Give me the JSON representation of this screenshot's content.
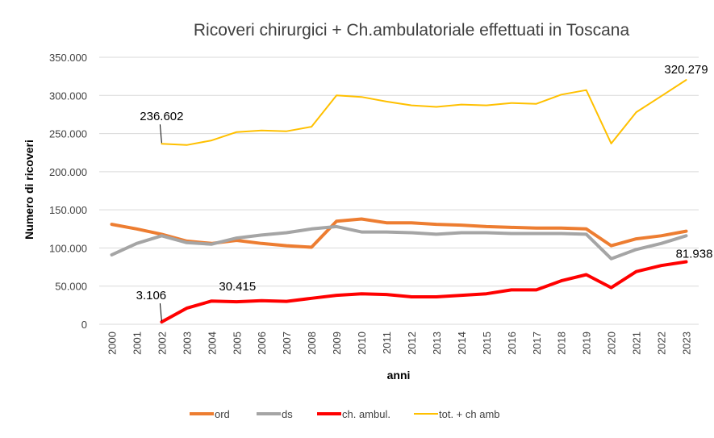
{
  "chart_data": {
    "type": "line",
    "title": "Ricoveri chirurgici + Ch.ambulatoriale effettuati in Toscana",
    "xlabel": "anni",
    "ylabel": "Numero di ricoveri",
    "ylim": [
      0,
      350000
    ],
    "yticks": [
      0,
      50000,
      100000,
      150000,
      200000,
      250000,
      300000,
      350000
    ],
    "ytick_labels": [
      "0",
      "50.000",
      "100.000",
      "150.000",
      "200.000",
      "250.000",
      "300.000",
      "350.000"
    ],
    "grid": true,
    "legend_position": "bottom",
    "categories": [
      "2000",
      "2001",
      "2002",
      "2003",
      "2004",
      "2005",
      "2006",
      "2007",
      "2008",
      "2009",
      "2010",
      "2011",
      "2012",
      "2013",
      "2014",
      "2015",
      "2016",
      "2017",
      "2018",
      "2019",
      "2020",
      "2021",
      "2022",
      "2023"
    ],
    "series": [
      {
        "name": "ord",
        "color": "#ED7D31",
        "values": [
          131000,
          125000,
          118000,
          109000,
          106000,
          110000,
          106000,
          103000,
          101000,
          135000,
          138000,
          133000,
          133000,
          131000,
          130000,
          128000,
          127000,
          126000,
          126000,
          125000,
          103000,
          112000,
          116000,
          122000
        ]
      },
      {
        "name": "ds",
        "color": "#A5A5A5",
        "values": [
          91000,
          106000,
          116000,
          107000,
          105000,
          113000,
          117000,
          120000,
          125000,
          128000,
          121000,
          121000,
          120000,
          118000,
          120000,
          120000,
          119000,
          119000,
          119000,
          118000,
          86000,
          98000,
          106000,
          116000
        ]
      },
      {
        "name": "ch. ambul.",
        "color": "#FF0000",
        "values": [
          null,
          null,
          3106,
          21000,
          30415,
          29500,
          31000,
          30000,
          34000,
          38000,
          40000,
          39000,
          36000,
          36000,
          38000,
          40000,
          45000,
          45000,
          57000,
          65000,
          48000,
          69000,
          77000,
          81938
        ]
      },
      {
        "name": "tot. + ch amb",
        "color": "#FFC000",
        "values": [
          null,
          null,
          236602,
          235000,
          241000,
          252000,
          254000,
          253000,
          259000,
          300000,
          298000,
          292000,
          287000,
          285000,
          288000,
          287000,
          290000,
          289000,
          301000,
          307000,
          237000,
          278000,
          299000,
          320279
        ]
      }
    ],
    "data_labels": [
      {
        "series": "tot. + ch amb",
        "category": "2002",
        "text": "236.602"
      },
      {
        "series": "tot. + ch amb",
        "category": "2023",
        "text": "320.279"
      },
      {
        "series": "ch. ambul.",
        "category": "2002",
        "text": "3.106"
      },
      {
        "series": "ch. ambul.",
        "category": "2004",
        "text": "30.415"
      },
      {
        "series": "ch. ambul.",
        "category": "2023",
        "text": "81.938"
      }
    ]
  }
}
